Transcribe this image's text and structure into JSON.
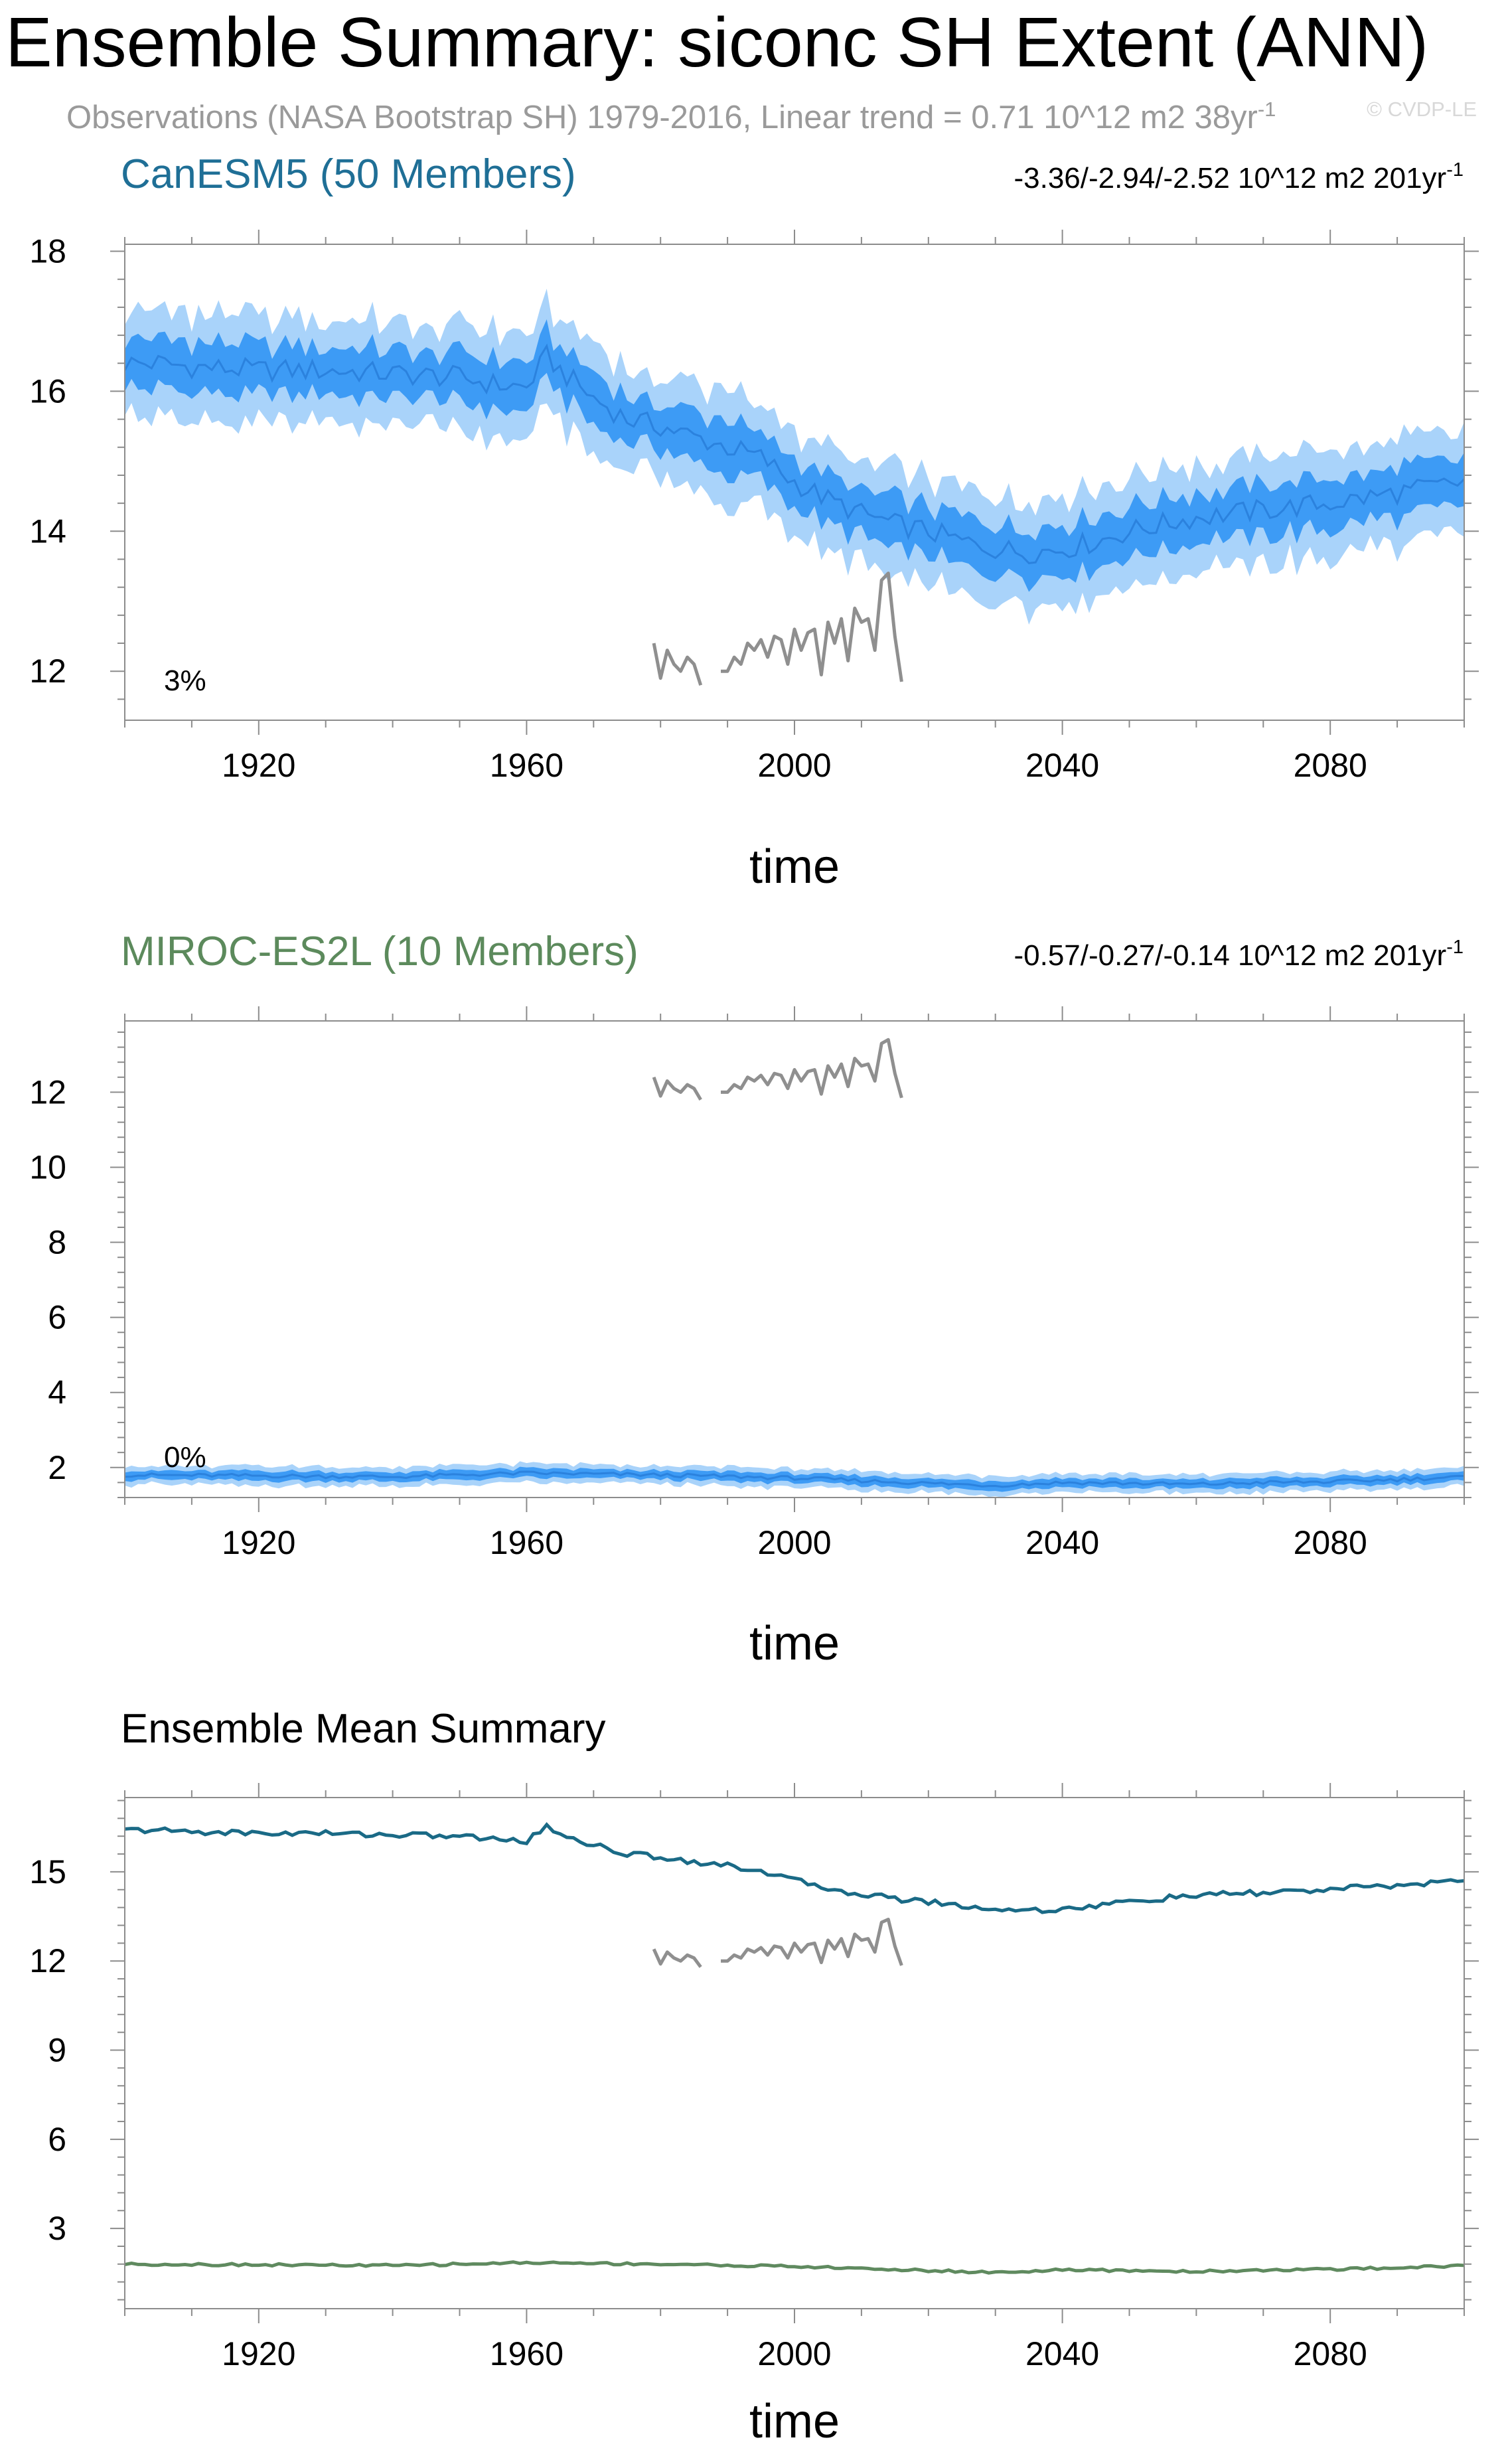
{
  "header": {
    "title": "Ensemble Summary: siconc SH Extent (ANN)",
    "subtitle": "Observations (NASA Bootstrap SH) 1979-2016, Linear trend = 0.71 10^12 m2 38yr",
    "subtitle_sup": "-1",
    "watermark": "© CVDP-LE"
  },
  "colors": {
    "canesm_title": "#1f6f96",
    "miroc_title": "#5c8a5c",
    "inner_band": "#3d9bf5",
    "outer_band": "#a9d3fa",
    "mean_line": "#2b82de",
    "obs_line": "#8f8f8f",
    "ens_mean_canesm": "#1a6a86",
    "ens_mean_miroc": "#5f8a5f"
  },
  "chart_data": [
    {
      "type": "area",
      "title": "CanESM5 (50 Members)",
      "trend_text": "-3.36/-2.94/-2.52 10^12 m2 201yr",
      "trend_sup": "-1",
      "percent_label": "3%",
      "xlabel": "time",
      "ylabel": "",
      "xlim": [
        1900,
        2100
      ],
      "ylim": [
        11.3,
        18.1
      ],
      "xticks": [
        1920,
        1960,
        2000,
        2040,
        2080
      ],
      "yticks": [
        12,
        14,
        16,
        18
      ],
      "series": [
        {
          "name": "ensemble mean",
          "x": [
            1900,
            1905,
            1910,
            1920,
            1930,
            1940,
            1950,
            1955,
            1960,
            1963,
            1965,
            1970,
            1975,
            1980,
            1985,
            1990,
            1995,
            2000,
            2005,
            2010,
            2015,
            2020,
            2025,
            2030,
            2035,
            2040,
            2045,
            2050,
            2055,
            2060,
            2070,
            2080,
            2090,
            2100
          ],
          "values": [
            16.4,
            16.4,
            16.35,
            16.3,
            16.3,
            16.25,
            16.2,
            16.1,
            16.05,
            16.5,
            16.3,
            15.9,
            15.6,
            15.5,
            15.35,
            15.2,
            15.05,
            14.7,
            14.45,
            14.25,
            14.1,
            14.0,
            13.85,
            13.75,
            13.7,
            13.75,
            13.85,
            14.0,
            14.1,
            14.2,
            14.3,
            14.4,
            14.55,
            14.7
          ]
        },
        {
          "name": "inner band half-width",
          "value": 0.35
        },
        {
          "name": "outer band half-width",
          "value": 0.75
        }
      ],
      "observations": {
        "name": "NASA Bootstrap SH",
        "x": [
          1979,
          1980,
          1981,
          1982,
          1983,
          1984,
          1985,
          1986,
          null,
          1989,
          1990,
          1991,
          1992,
          1993,
          1994,
          1995,
          1996,
          1997,
          1998,
          1999,
          2000,
          2001,
          2002,
          2003,
          2004,
          2005,
          2006,
          2007,
          2008,
          2009,
          2010,
          2011,
          2012,
          2013,
          2014,
          2015,
          2016
        ],
        "values": [
          12.4,
          11.9,
          12.3,
          12.1,
          12.0,
          12.2,
          12.1,
          11.8,
          null,
          12.0,
          12.0,
          12.2,
          12.1,
          12.4,
          12.3,
          12.45,
          12.2,
          12.5,
          12.45,
          12.1,
          12.6,
          12.3,
          12.55,
          12.6,
          11.95,
          12.7,
          12.4,
          12.75,
          12.15,
          12.9,
          12.7,
          12.75,
          12.3,
          13.3,
          13.4,
          12.5,
          11.85
        ]
      }
    },
    {
      "type": "area",
      "title": "MIROC-ES2L (10 Members)",
      "trend_text": "-0.57/-0.27/-0.14 10^12 m2 201yr",
      "trend_sup": "-1",
      "percent_label": "0%",
      "xlabel": "time",
      "ylabel": "",
      "xlim": [
        1900,
        2100
      ],
      "ylim": [
        1.2,
        13.9
      ],
      "xticks": [
        1920,
        1960,
        2000,
        2040,
        2080
      ],
      "yticks": [
        2,
        4,
        6,
        8,
        10,
        12
      ],
      "series": [
        {
          "name": "ensemble mean",
          "x": [
            1900,
            1920,
            1940,
            1960,
            1980,
            2000,
            2010,
            2020,
            2030,
            2040,
            2050,
            2060,
            2070,
            2080,
            2090,
            2100
          ],
          "values": [
            1.8,
            1.78,
            1.75,
            1.85,
            1.8,
            1.72,
            1.65,
            1.58,
            1.52,
            1.6,
            1.58,
            1.55,
            1.6,
            1.62,
            1.68,
            1.75
          ]
        },
        {
          "name": "inner band half-width",
          "value": 0.12
        },
        {
          "name": "outer band half-width",
          "value": 0.25
        }
      ],
      "observations": {
        "name": "NASA Bootstrap SH",
        "same_as_above": true
      }
    },
    {
      "type": "line",
      "title": "Ensemble Mean Summary",
      "xlabel": "time",
      "ylabel": "",
      "xlim": [
        1900,
        2100
      ],
      "ylim": [
        0.3,
        17.5
      ],
      "xticks": [
        1920,
        1960,
        2000,
        2040,
        2080
      ],
      "yticks": [
        3,
        6,
        9,
        12,
        15
      ],
      "series": [
        {
          "name": "CanESM5",
          "x": [
            1900,
            1905,
            1910,
            1920,
            1930,
            1940,
            1950,
            1955,
            1960,
            1963,
            1965,
            1970,
            1975,
            1980,
            1985,
            1990,
            1995,
            2000,
            2005,
            2010,
            2015,
            2020,
            2025,
            2030,
            2035,
            2040,
            2045,
            2050,
            2055,
            2060,
            2070,
            2080,
            2090,
            2100
          ],
          "values": [
            16.4,
            16.4,
            16.35,
            16.3,
            16.3,
            16.25,
            16.2,
            16.1,
            16.05,
            16.5,
            16.3,
            15.9,
            15.6,
            15.5,
            15.35,
            15.2,
            15.05,
            14.7,
            14.45,
            14.25,
            14.1,
            14.0,
            13.85,
            13.75,
            13.7,
            13.75,
            13.85,
            14.0,
            14.1,
            14.2,
            14.3,
            14.4,
            14.55,
            14.7
          ]
        },
        {
          "name": "MIROC-ES2L",
          "x": [
            1900,
            1920,
            1940,
            1960,
            1980,
            2000,
            2010,
            2020,
            2030,
            2040,
            2050,
            2060,
            2070,
            2080,
            2090,
            2100
          ],
          "values": [
            1.8,
            1.78,
            1.75,
            1.85,
            1.8,
            1.72,
            1.65,
            1.58,
            1.52,
            1.6,
            1.58,
            1.55,
            1.6,
            1.62,
            1.68,
            1.75
          ]
        },
        {
          "name": "observations",
          "same_as_above": true
        }
      ]
    }
  ]
}
